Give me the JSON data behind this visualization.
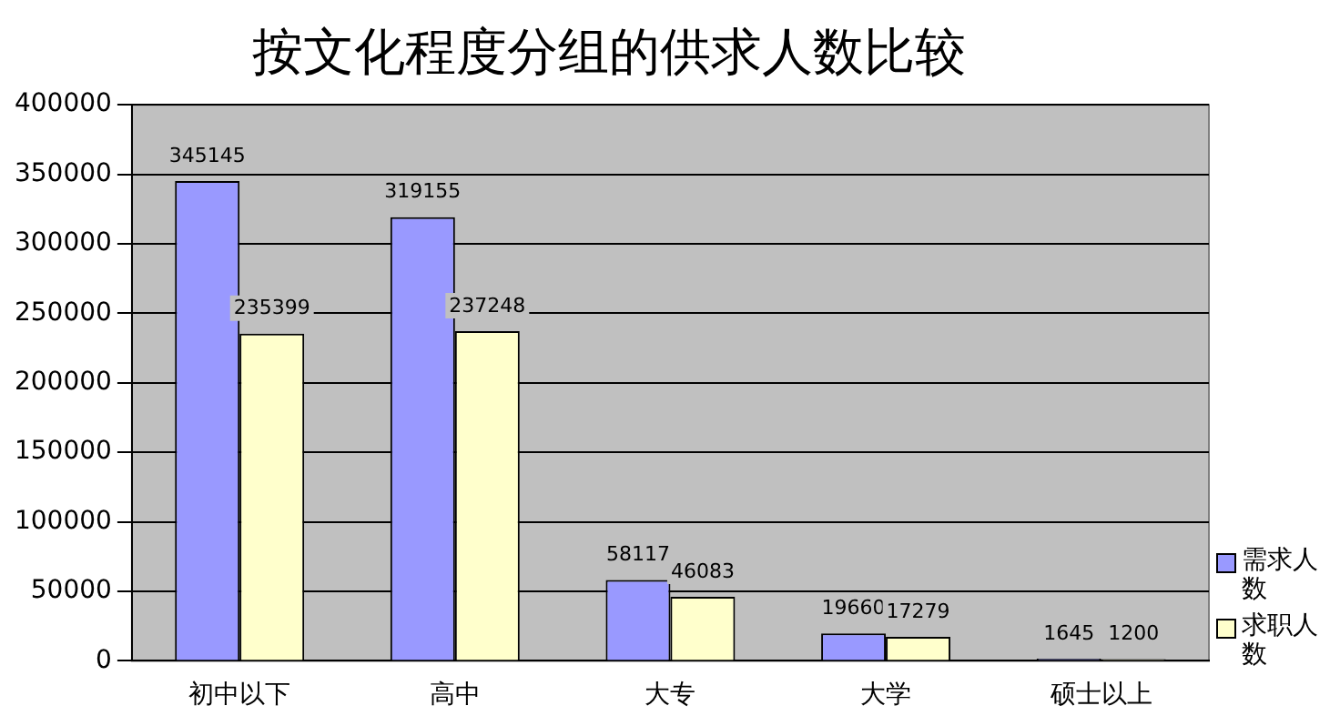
{
  "chart_data": {
    "type": "bar",
    "title": "按文化程度分组的供求人数比较",
    "categories": [
      "初中以下",
      "高中",
      "大专",
      "大学",
      "硕士以上"
    ],
    "series": [
      {
        "name": "需求人数",
        "color": "#9999ff",
        "values": [
          345145,
          319155,
          58117,
          19660,
          1645
        ]
      },
      {
        "name": "求职人数",
        "color": "#ffffcc",
        "values": [
          235399,
          237248,
          46083,
          17279,
          1200
        ]
      }
    ],
    "ylim": [
      0,
      400000
    ],
    "yticks": [
      0,
      50000,
      100000,
      150000,
      200000,
      250000,
      300000,
      350000,
      400000
    ],
    "grid": "y",
    "legend": "right",
    "data_labels": true
  }
}
